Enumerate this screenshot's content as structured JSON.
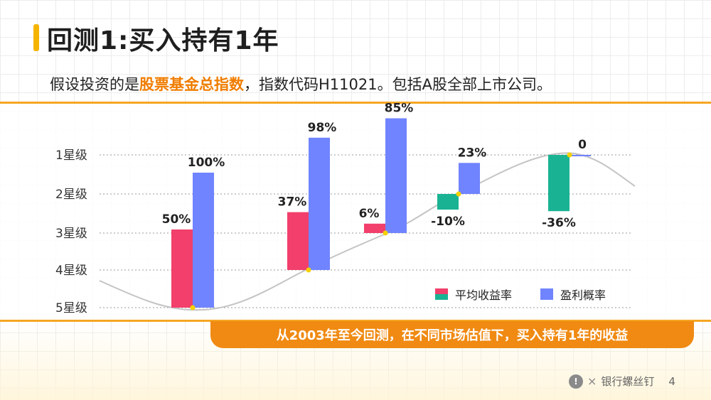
{
  "header": {
    "title": "回测1:买入持有1年"
  },
  "subtitle": {
    "prefix": "假设投资的是",
    "highlight": "股票基金总指数",
    "suffix": "，指数代码H11021。包括A股全部上市公司。"
  },
  "banner": {
    "text": "从2003年至今回测，在不同市场估值下，买入持有1年的收益"
  },
  "footer": {
    "brand": "银行螺丝钉",
    "page": "4"
  },
  "colors": {
    "positive_return": "#f23f6b",
    "negative_return": "#19b394",
    "probability": "#7084ff",
    "accent": "#f5a623",
    "banner": "#f08a12"
  },
  "chart_data": {
    "type": "bar",
    "y_categories": [
      "1星级",
      "2星级",
      "3星级",
      "4星级",
      "5星级"
    ],
    "legend": {
      "return_label": "平均收益率",
      "probability_label": "盈利概率",
      "placement": "bottom-right"
    },
    "series": [
      {
        "name": "平均收益率",
        "values": [
          50,
          37,
          6,
          -10,
          -36
        ],
        "labels": [
          "50%",
          "37%",
          "6%",
          "-10%",
          "-36%"
        ]
      },
      {
        "name": "盈利概率",
        "values": [
          100,
          98,
          85,
          23,
          0
        ],
        "labels": [
          "100%",
          "98%",
          "85%",
          "23%",
          "0"
        ]
      }
    ],
    "groups": [
      {
        "star_level": 5
      },
      {
        "star_level": 4
      },
      {
        "star_level": 3
      },
      {
        "star_level": 2
      },
      {
        "star_level": 1
      }
    ],
    "grid": true
  }
}
